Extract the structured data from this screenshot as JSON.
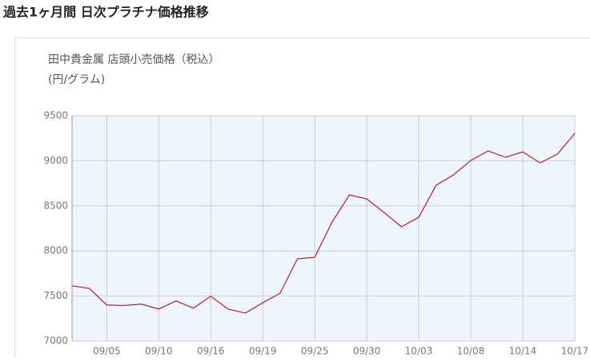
{
  "chart_data": {
    "type": "line",
    "title": "過去1ヶ月間 日次プラチナ価格推移",
    "subtitle": "田中貴金属 店頭小売価格（税込）",
    "y_label": "(円/グラム)",
    "categories": [
      null,
      null,
      "09/05",
      null,
      null,
      "09/10",
      null,
      null,
      "09/16",
      null,
      null,
      "09/19",
      null,
      null,
      "09/25",
      null,
      null,
      "09/30",
      null,
      null,
      "10/03",
      null,
      null,
      "10/08",
      null,
      null,
      "10/14",
      null,
      null,
      "10/17"
    ],
    "values": [
      7612,
      7585,
      7400,
      7395,
      7410,
      7355,
      7445,
      7365,
      7497,
      7355,
      7310,
      7425,
      7530,
      7913,
      7930,
      8320,
      8622,
      8578,
      8427,
      8268,
      8374,
      8729,
      8844,
      9004,
      9110,
      9040,
      9100,
      8977,
      9075,
      9305
    ],
    "color": "#b01c2a",
    "ylim": [
      7000,
      9500
    ],
    "yticks": [
      7000,
      7500,
      8000,
      8500,
      9000,
      9500
    ],
    "grid": true
  }
}
